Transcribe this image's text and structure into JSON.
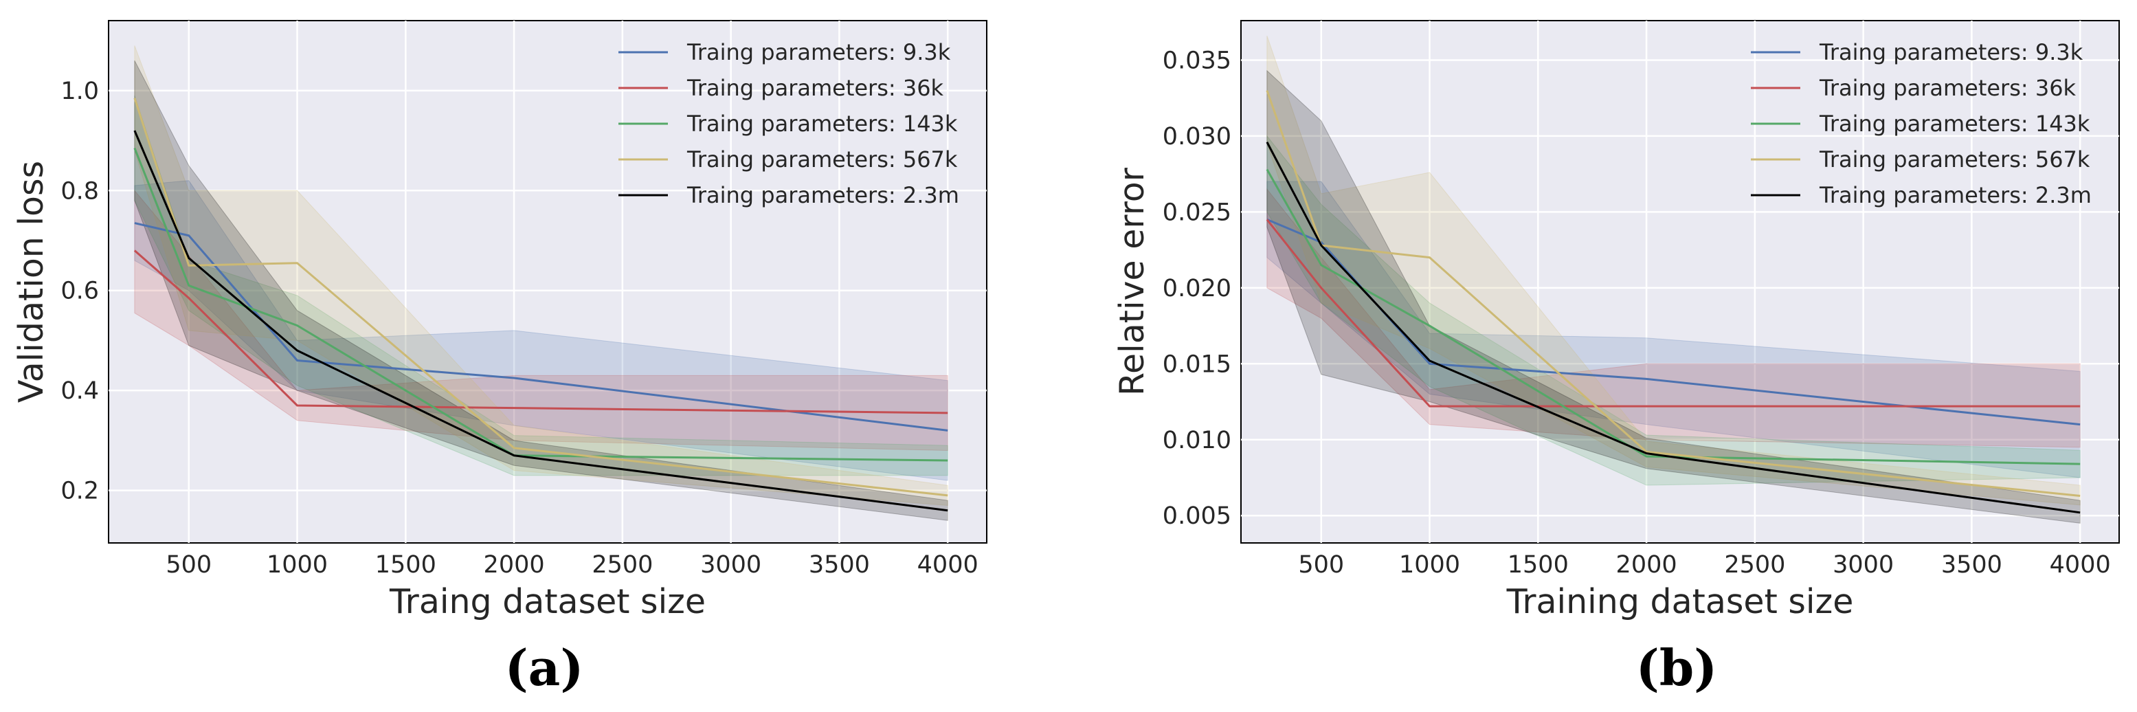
{
  "panels": [
    {
      "panel_label": "(a)",
      "chart_data": {
        "type": "line",
        "xlabel": "Traing dataset size",
        "ylabel": "Validation loss",
        "xlim": [
          130,
          4180
        ],
        "ylim": [
          0.095,
          1.14
        ],
        "x": [
          250,
          500,
          1000,
          2000,
          4000
        ],
        "xticks": [
          500,
          1000,
          1500,
          2000,
          2500,
          3000,
          3500,
          4000
        ],
        "xtick_labels": [
          "500",
          "1000",
          "1500",
          "2000",
          "2500",
          "3000",
          "3500",
          "4000"
        ],
        "yticks": [
          0.2,
          0.4,
          0.6,
          0.8,
          1.0
        ],
        "ytick_labels": [
          "0.2",
          "0.4",
          "0.6",
          "0.8",
          "1.0"
        ],
        "grid": true,
        "legend_position": "top-right",
        "series": [
          {
            "name": "Traing parameters: 9.3k",
            "color": "#4c72b0",
            "values": [
              0.735,
              0.71,
              0.46,
              0.425,
              0.32
            ],
            "lower": [
              0.66,
              0.6,
              0.4,
              0.33,
              0.22
            ],
            "upper": [
              0.81,
              0.82,
              0.5,
              0.52,
              0.42
            ]
          },
          {
            "name": "Traing parameters: 36k",
            "color": "#c44e52",
            "values": [
              0.68,
              0.585,
              0.37,
              0.365,
              0.355
            ],
            "lower": [
              0.555,
              0.49,
              0.34,
              0.3,
              0.28
            ],
            "upper": [
              0.8,
              0.67,
              0.4,
              0.43,
              0.43
            ]
          },
          {
            "name": "Traing parameters: 143k",
            "color": "#55a868",
            "values": [
              0.885,
              0.61,
              0.53,
              0.27,
              0.26
            ],
            "lower": [
              0.78,
              0.56,
              0.41,
              0.23,
              0.23
            ],
            "upper": [
              0.99,
              0.66,
              0.59,
              0.31,
              0.29
            ]
          },
          {
            "name": "Traing parameters: 567k",
            "color": "#ccb974",
            "values": [
              0.985,
              0.65,
              0.655,
              0.285,
              0.19
            ],
            "lower": [
              0.88,
              0.52,
              0.5,
              0.24,
              0.17
            ],
            "upper": [
              1.09,
              0.8,
              0.8,
              0.33,
              0.21
            ]
          },
          {
            "name": "Traing parameters: 2.3m",
            "color": "#000000",
            "values": [
              0.92,
              0.665,
              0.48,
              0.27,
              0.16
            ],
            "lower": [
              0.78,
              0.49,
              0.4,
              0.25,
              0.14
            ],
            "upper": [
              1.06,
              0.85,
              0.56,
              0.3,
              0.18
            ]
          }
        ]
      }
    },
    {
      "panel_label": "(b)",
      "chart_data": {
        "type": "line",
        "xlabel": "Training dataset size",
        "ylabel": "Relative error",
        "xlim": [
          130,
          4180
        ],
        "ylim": [
          0.0032,
          0.0376
        ],
        "x": [
          250,
          500,
          1000,
          2000,
          4000
        ],
        "xticks": [
          500,
          1000,
          1500,
          2000,
          2500,
          3000,
          3500,
          4000
        ],
        "xtick_labels": [
          "500",
          "1000",
          "1500",
          "2000",
          "2500",
          "3000",
          "3500",
          "4000"
        ],
        "yticks": [
          0.005,
          0.01,
          0.015,
          0.02,
          0.025,
          0.03,
          0.035
        ],
        "ytick_labels": [
          "0.005",
          "0.010",
          "0.015",
          "0.020",
          "0.025",
          "0.030",
          "0.035"
        ],
        "grid": true,
        "legend_position": "top-right",
        "series": [
          {
            "name": "Traing parameters: 9.3k",
            "color": "#4c72b0",
            "values": [
              0.0245,
              0.023,
              0.015,
              0.014,
              0.011
            ],
            "lower": [
              0.022,
              0.019,
              0.013,
              0.011,
              0.0075
            ],
            "upper": [
              0.027,
              0.027,
              0.017,
              0.0167,
              0.0145
            ]
          },
          {
            "name": "Traing parameters: 36k",
            "color": "#c44e52",
            "values": [
              0.0245,
              0.02,
              0.0122,
              0.0122,
              0.0122
            ],
            "lower": [
              0.02,
              0.018,
              0.011,
              0.01,
              0.0095
            ],
            "upper": [
              0.0265,
              0.022,
              0.0133,
              0.015,
              0.015
            ]
          },
          {
            "name": "Traing parameters: 143k",
            "color": "#55a868",
            "values": [
              0.0278,
              0.0215,
              0.0175,
              0.0089,
              0.0084
            ],
            "lower": [
              0.025,
              0.019,
              0.0135,
              0.007,
              0.0075
            ],
            "upper": [
              0.03,
              0.0255,
              0.019,
              0.0103,
              0.0093
            ]
          },
          {
            "name": "Traing parameters: 567k",
            "color": "#ccb974",
            "values": [
              0.033,
              0.0228,
              0.022,
              0.0092,
              0.0063
            ],
            "lower": [
              0.0295,
              0.019,
              0.016,
              0.0082,
              0.0057
            ],
            "upper": [
              0.0366,
              0.0262,
              0.0276,
              0.0099,
              0.007
            ]
          },
          {
            "name": "Traing parameters: 2.3m",
            "color": "#000000",
            "values": [
              0.0296,
              0.0228,
              0.0152,
              0.0091,
              0.0052
            ],
            "lower": [
              0.024,
              0.0143,
              0.0125,
              0.0081,
              0.0045
            ],
            "upper": [
              0.0343,
              0.031,
              0.0175,
              0.0101,
              0.006
            ]
          }
        ]
      }
    }
  ]
}
